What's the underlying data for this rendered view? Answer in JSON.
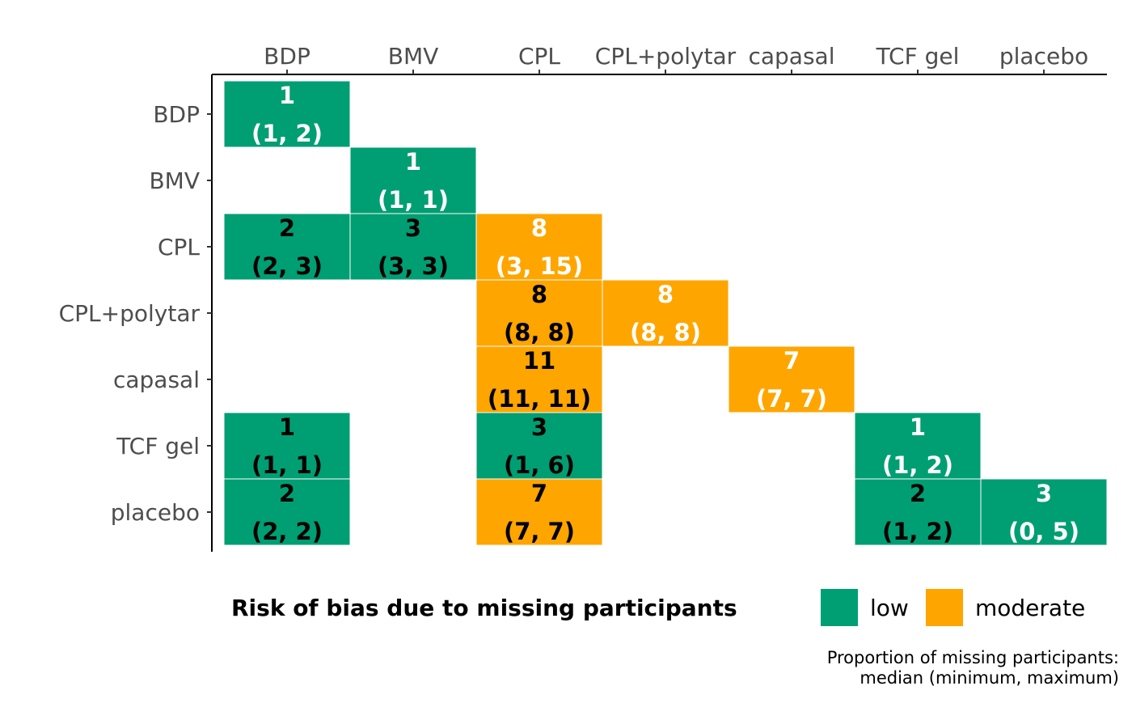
{
  "chart_data": {
    "type": "heatmap",
    "x_categories": [
      "BDP",
      "BMV",
      "CPL",
      "CPL+polytar",
      "capasal",
      "TCF gel",
      "placebo"
    ],
    "y_categories": [
      "BDP",
      "BMV",
      "CPL",
      "CPL+polytar",
      "capasal",
      "TCF gel",
      "placebo"
    ],
    "cells": [
      {
        "row": "BDP",
        "col": "BDP",
        "median": "1",
        "range": "(1, 2)",
        "risk": "low",
        "text_color": "#ffffff"
      },
      {
        "row": "BMV",
        "col": "BMV",
        "median": "1",
        "range": "(1, 1)",
        "risk": "low",
        "text_color": "#ffffff"
      },
      {
        "row": "CPL",
        "col": "BDP",
        "median": "2",
        "range": "(2, 3)",
        "risk": "low",
        "text_color": "#000000"
      },
      {
        "row": "CPL",
        "col": "BMV",
        "median": "3",
        "range": "(3, 3)",
        "risk": "low",
        "text_color": "#000000"
      },
      {
        "row": "CPL",
        "col": "CPL",
        "median": "8",
        "range": "(3, 15)",
        "risk": "moderate",
        "text_color": "#ffffff"
      },
      {
        "row": "CPL+polytar",
        "col": "CPL",
        "median": "8",
        "range": "(8, 8)",
        "risk": "moderate",
        "text_color": "#000000"
      },
      {
        "row": "CPL+polytar",
        "col": "CPL+polytar",
        "median": "8",
        "range": "(8, 8)",
        "risk": "moderate",
        "text_color": "#ffffff"
      },
      {
        "row": "capasal",
        "col": "CPL",
        "median": "11",
        "range": "(11, 11)",
        "risk": "moderate",
        "text_color": "#000000"
      },
      {
        "row": "capasal",
        "col": "capasal",
        "median": "7",
        "range": "(7, 7)",
        "risk": "moderate",
        "text_color": "#ffffff"
      },
      {
        "row": "TCF gel",
        "col": "BDP",
        "median": "1",
        "range": "(1, 1)",
        "risk": "low",
        "text_color": "#000000"
      },
      {
        "row": "TCF gel",
        "col": "CPL",
        "median": "3",
        "range": "(1, 6)",
        "risk": "low",
        "text_color": "#000000"
      },
      {
        "row": "TCF gel",
        "col": "TCF gel",
        "median": "1",
        "range": "(1, 2)",
        "risk": "low",
        "text_color": "#ffffff"
      },
      {
        "row": "placebo",
        "col": "BDP",
        "median": "2",
        "range": "(2, 2)",
        "risk": "low",
        "text_color": "#000000"
      },
      {
        "row": "placebo",
        "col": "CPL",
        "median": "7",
        "range": "(7, 7)",
        "risk": "moderate",
        "text_color": "#000000"
      },
      {
        "row": "placebo",
        "col": "TCF gel",
        "median": "2",
        "range": "(1, 2)",
        "risk": "low",
        "text_color": "#000000"
      },
      {
        "row": "placebo",
        "col": "placebo",
        "median": "3",
        "range": "(0, 5)",
        "risk": "low",
        "text_color": "#ffffff"
      }
    ],
    "legend": {
      "title": "Risk of bias due to missing participants",
      "placement": "bottom",
      "entries": [
        {
          "key": "low",
          "label": "low",
          "color": "#009e73"
        },
        {
          "key": "moderate",
          "label": "moderate",
          "color": "#ffa500"
        }
      ]
    },
    "caption": [
      "Proportion of missing participants:",
      "median (minimum, maximum)"
    ],
    "x_axis_position": "top",
    "grid": false
  }
}
